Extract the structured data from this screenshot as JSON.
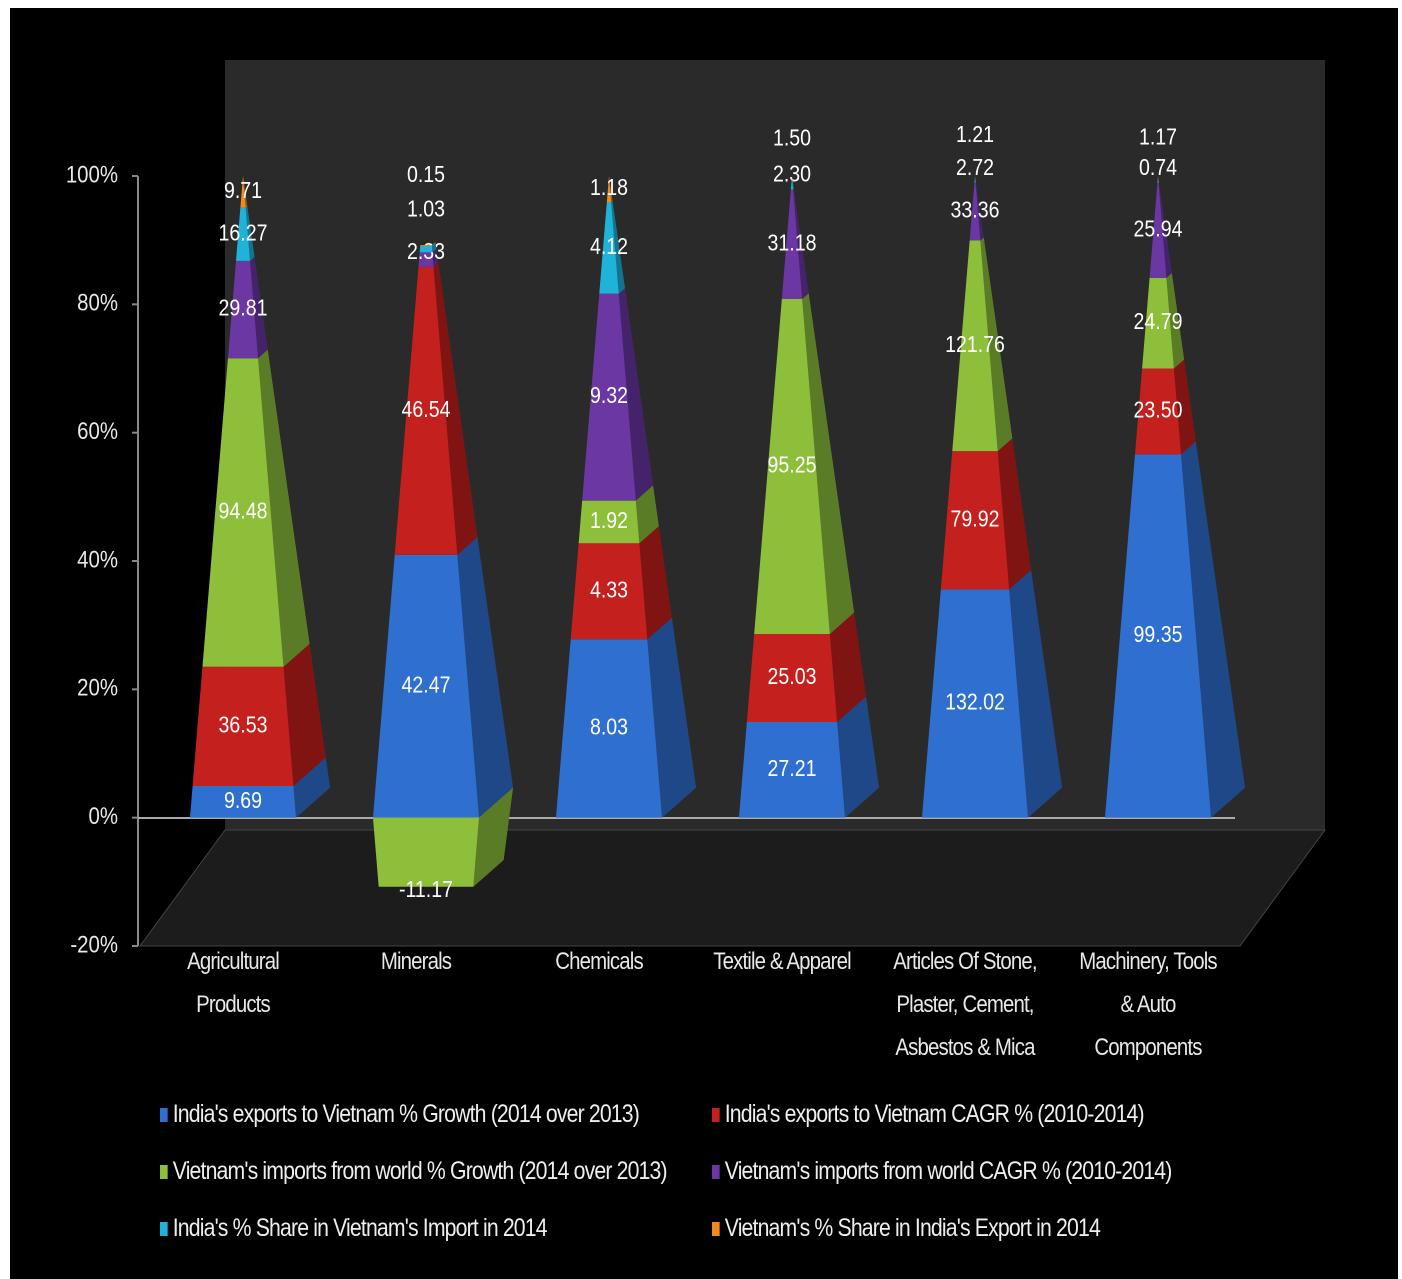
{
  "chart_data": {
    "type": "pyramid",
    "categories": [
      "Agricultural Products",
      "Minerals",
      "Chemicals",
      "Textile & Apparel",
      "Articles Of Stone, Plaster, Cement, Asbestos & Mica",
      "Machinery, Tools & Auto Components"
    ],
    "series": [
      {
        "name": "India's exports to Vietnam % Growth (2014 over 2013)",
        "color": "#2f6fd0",
        "values": [
          9.69,
          42.47,
          8.03,
          27.21,
          132.02,
          99.35
        ],
        "value_labels": [
          "9.69",
          "42.47",
          "8.03",
          "27.21",
          "132.02",
          "99.35"
        ]
      },
      {
        "name": "India's exports to Vietnam CAGR % (2010-2014)",
        "color": "#c4201e",
        "values": [
          36.53,
          46.54,
          4.33,
          25.03,
          79.92,
          23.5
        ],
        "value_labels": [
          "36.53",
          "46.54",
          "4.33",
          "25.03",
          "79.92",
          "23.50"
        ]
      },
      {
        "name": "Vietnam's imports from world % Growth (2014 over 2013)",
        "color": "#8dbf3b",
        "values": [
          94.48,
          -11.17,
          1.92,
          95.25,
          121.76,
          24.79
        ],
        "value_labels": [
          "94.48",
          "-11.17",
          "1.92",
          "95.25",
          "121.76",
          "24.79"
        ]
      },
      {
        "name": "Vietnam's imports from world CAGR % (2010-2014)",
        "color": "#6b37a3",
        "values": [
          29.81,
          2.33,
          9.32,
          31.18,
          33.36,
          25.94
        ],
        "value_labels": [
          "29.81",
          "2.33",
          "9.32",
          "31.18",
          "33.36",
          "25.94"
        ]
      },
      {
        "name": "India's % Share in Vietnam's Import in 2014",
        "color": "#1fb3da",
        "values": [
          16.27,
          1.03,
          4.12,
          2.3,
          2.72,
          0.74
        ],
        "value_labels": [
          "16.27",
          "1.03",
          "4.12",
          "2.30",
          "2.72",
          "0.74"
        ]
      },
      {
        "name": "Vietnam's % Share in India's Export in 2014",
        "color": "#f08a1c",
        "values": [
          9.71,
          0.15,
          1.18,
          1.5,
          1.21,
          1.17
        ],
        "value_labels": [
          "9.71",
          "0.15",
          "1.18",
          "1.50",
          "1.21",
          "1.17"
        ]
      }
    ],
    "ylim": [
      -20,
      100
    ],
    "yticks": [
      {
        "value": -20,
        "label": "-20%"
      },
      {
        "value": 0,
        "label": "0%"
      },
      {
        "value": 20,
        "label": "20%"
      },
      {
        "value": 40,
        "label": "40%"
      },
      {
        "value": 60,
        "label": "60%"
      },
      {
        "value": 80,
        "label": "80%"
      },
      {
        "value": 100,
        "label": "100%"
      }
    ]
  }
}
